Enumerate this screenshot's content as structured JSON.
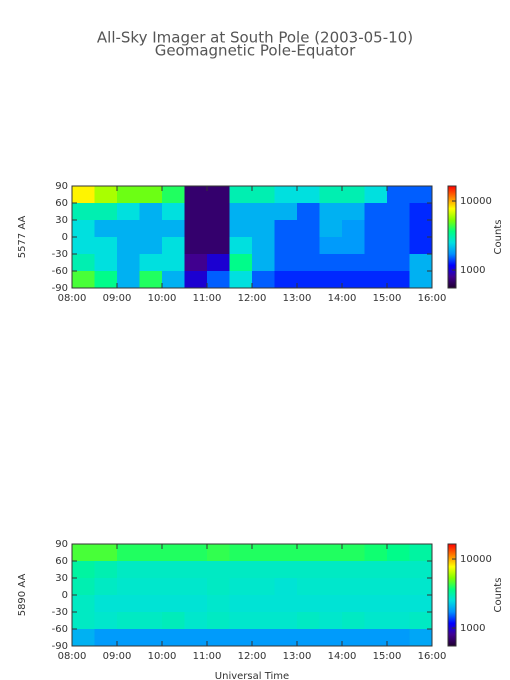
{
  "chart_data": [
    {
      "type": "heatmap",
      "title": "All-Sky Imager at South Pole (2003-05-10)",
      "subtitle": "Geomagnetic Pole-Equator",
      "ylabel": "5577 AA",
      "colorbar_label": "Counts",
      "xbins": [
        8,
        8.5,
        9,
        9.5,
        10,
        10.5,
        11,
        11.5,
        12,
        12.5,
        13,
        13.5,
        14,
        14.5,
        15,
        15.5,
        16
      ],
      "ybins": [
        90,
        60,
        30,
        0,
        -30,
        -60,
        -90
      ],
      "z": [
        [
          8000,
          6000,
          5000,
          5000,
          4000,
          700,
          700,
          3000,
          3000,
          2500,
          2500,
          3000,
          3000,
          2500,
          1500,
          1500
        ],
        [
          3000,
          3000,
          2500,
          2000,
          2500,
          700,
          700,
          2000,
          2000,
          2000,
          1500,
          2000,
          2000,
          1500,
          1500,
          1300
        ],
        [
          2500,
          2000,
          2000,
          2000,
          2000,
          700,
          700,
          2000,
          2000,
          1500,
          1500,
          2000,
          1800,
          1500,
          1500,
          1300
        ],
        [
          2500,
          2500,
          2000,
          2000,
          2500,
          700,
          700,
          2500,
          2000,
          1500,
          1500,
          1800,
          1800,
          1500,
          1500,
          1300
        ],
        [
          3000,
          2500,
          2000,
          2500,
          2500,
          800,
          1000,
          3500,
          2000,
          1500,
          1500,
          1500,
          1500,
          1500,
          1500,
          2000
        ],
        [
          4500,
          3500,
          2000,
          4000,
          2000,
          1000,
          1500,
          2500,
          1500,
          1300,
          1300,
          1300,
          1300,
          1300,
          1300,
          2000
        ]
      ],
      "xlim": [
        8,
        16
      ],
      "xticks": [
        {
          "value": 8,
          "label": "08:00"
        },
        {
          "value": 9,
          "label": "09:00"
        },
        {
          "value": 10,
          "label": "10:00"
        },
        {
          "value": 11,
          "label": "11:00"
        },
        {
          "value": 12,
          "label": "12:00"
        },
        {
          "value": 13,
          "label": "13:00"
        },
        {
          "value": 14,
          "label": "14:00"
        },
        {
          "value": 15,
          "label": "15:00"
        },
        {
          "value": 16,
          "label": "16:00"
        }
      ],
      "ylim": [
        -90,
        90
      ],
      "yticks": [
        90,
        60,
        30,
        0,
        -30,
        -60,
        -90
      ],
      "zlim": [
        550,
        16500
      ],
      "zticks": [
        1000,
        10000
      ],
      "zlog": true,
      "colormap": [
        "#200030",
        "#400090",
        "#0000ff",
        "#0090ff",
        "#00e0e0",
        "#00ff80",
        "#80ff00",
        "#ffff00",
        "#ff8000",
        "#ff0000"
      ]
    },
    {
      "type": "heatmap",
      "ylabel": "5890 AA",
      "colorbar_label": "Counts",
      "xlabel": "Universal Time",
      "xbins": [
        8,
        8.5,
        9,
        9.5,
        10,
        10.5,
        11,
        11.5,
        12,
        12.5,
        13,
        13.5,
        14,
        14.5,
        15,
        15.5,
        16
      ],
      "ybins": [
        90,
        60,
        30,
        0,
        -30,
        -60,
        -90
      ],
      "z": [
        [
          4500,
          4500,
          4000,
          4000,
          4000,
          4000,
          4200,
          4000,
          4000,
          4000,
          4000,
          4000,
          4000,
          3800,
          3500,
          3200
        ],
        [
          3200,
          3000,
          2800,
          2800,
          2800,
          2800,
          2800,
          2800,
          2800,
          2800,
          2800,
          2800,
          2800,
          2800,
          2800,
          2800
        ],
        [
          3000,
          2800,
          2700,
          2700,
          2700,
          2700,
          2800,
          2700,
          2700,
          2600,
          2700,
          2700,
          2700,
          2700,
          2700,
          2700
        ],
        [
          2800,
          2600,
          2600,
          2600,
          2600,
          2600,
          2700,
          2600,
          2600,
          2600,
          2600,
          2600,
          2600,
          2600,
          2600,
          2600
        ],
        [
          2800,
          2700,
          2800,
          2800,
          2900,
          2700,
          2800,
          2700,
          2700,
          2700,
          2800,
          2700,
          2800,
          2700,
          2700,
          2800
        ],
        [
          2000,
          1800,
          1800,
          1800,
          1800,
          1800,
          1800,
          1800,
          1800,
          1800,
          1800,
          1800,
          1800,
          1800,
          1800,
          1900
        ]
      ],
      "xlim": [
        8,
        16
      ],
      "xticks": [
        {
          "value": 8,
          "label": "08:00"
        },
        {
          "value": 9,
          "label": "09:00"
        },
        {
          "value": 10,
          "label": "10:00"
        },
        {
          "value": 11,
          "label": "11:00"
        },
        {
          "value": 12,
          "label": "12:00"
        },
        {
          "value": 13,
          "label": "13:00"
        },
        {
          "value": 14,
          "label": "14:00"
        },
        {
          "value": 15,
          "label": "15:00"
        },
        {
          "value": 16,
          "label": "16:00"
        }
      ],
      "ylim": [
        -90,
        90
      ],
      "yticks": [
        90,
        60,
        30,
        0,
        -30,
        -60,
        -90
      ],
      "zlim": [
        550,
        16500
      ],
      "zticks": [
        1000,
        10000
      ],
      "zlog": true,
      "colormap": [
        "#200030",
        "#400090",
        "#0000ff",
        "#0090ff",
        "#00e0e0",
        "#00ff80",
        "#80ff00",
        "#ffff00",
        "#ff8000",
        "#ff0000"
      ]
    }
  ]
}
